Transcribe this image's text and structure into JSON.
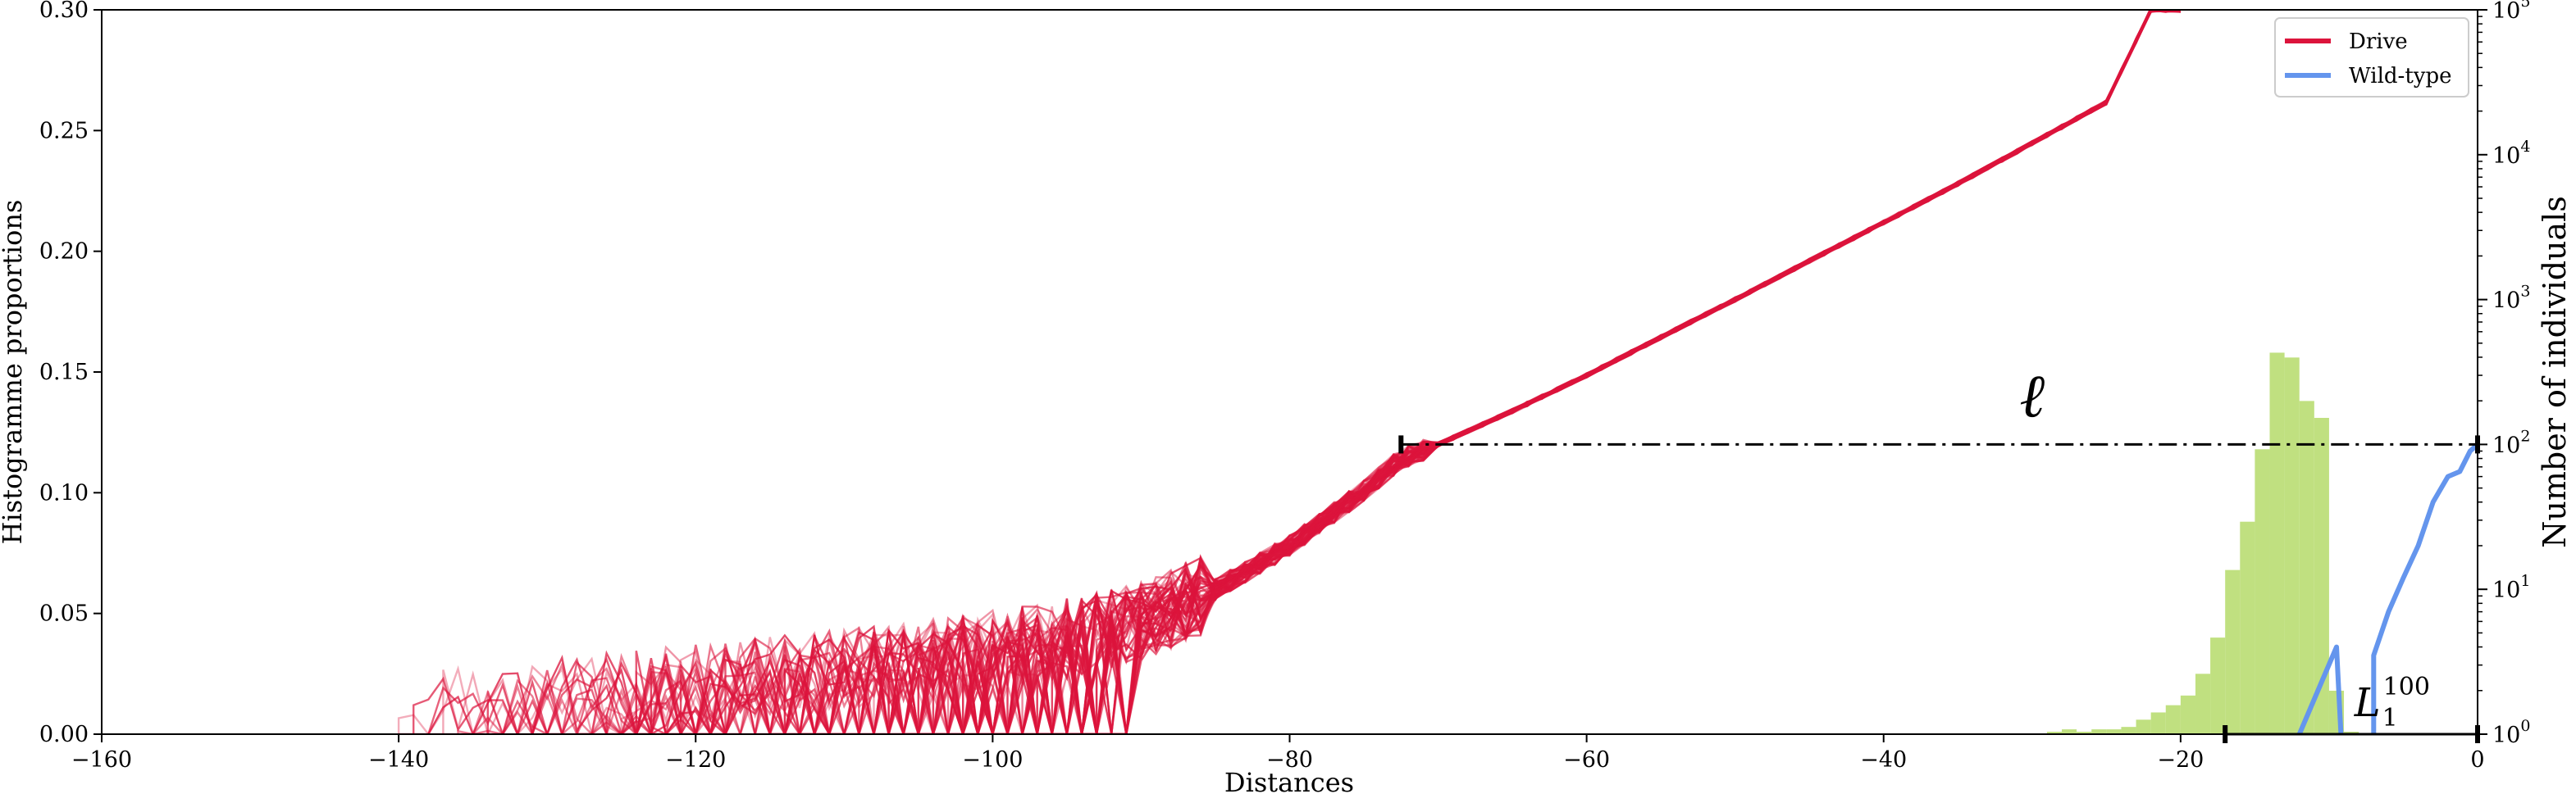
{
  "chart_data": {
    "type": "line",
    "title": "",
    "xlabel": "Distances",
    "ylabel_left": "Histogramme proportions",
    "ylabel_right": "Number of individuals",
    "xlim": [
      -160,
      0
    ],
    "ylim_left": [
      0,
      0.3
    ],
    "ylim_right": [
      1,
      100000
    ],
    "right_axis_scale": "log",
    "grid": false,
    "legend_position": "top-right",
    "x_ticks": [
      "−160",
      "−140",
      "−120",
      "−100",
      "−80",
      "−60",
      "−40",
      "−20",
      "0"
    ],
    "x_tick_values": [
      -160,
      -140,
      -120,
      -100,
      -80,
      -60,
      -40,
      -20,
      0
    ],
    "y_left_ticks": [
      "0.00",
      "0.05",
      "0.10",
      "0.15",
      "0.20",
      "0.25",
      "0.30"
    ],
    "y_left_tick_values": [
      0,
      0.05,
      0.1,
      0.15,
      0.2,
      0.25,
      0.3
    ],
    "y_right_ticks": [
      {
        "base": "10",
        "exp": "0",
        "value": 1
      },
      {
        "base": "10",
        "exp": "1",
        "value": 10
      },
      {
        "base": "10",
        "exp": "2",
        "value": 100
      },
      {
        "base": "10",
        "exp": "3",
        "value": 1000
      },
      {
        "base": "10",
        "exp": "4",
        "value": 10000
      },
      {
        "base": "10",
        "exp": "5",
        "value": 100000
      }
    ],
    "legend": [
      {
        "label": "Drive",
        "color": "#DC143C"
      },
      {
        "label": "Wild-type",
        "color": "#6495ED"
      }
    ],
    "series": [
      {
        "name": "Drive",
        "axis": "right",
        "color": "#DC143C",
        "note_count": 60,
        "x": [
          -140,
          -135,
          -130,
          -125,
          -120,
          -115,
          -110,
          -105,
          -100,
          -95,
          -90,
          -85,
          -80,
          -75,
          -72.5,
          -70,
          -65,
          -60,
          -55,
          -50,
          -45,
          -40,
          -35,
          -30,
          -25,
          -22
        ],
        "y": [
          1.4,
          1.6,
          1.8,
          2.0,
          2.2,
          2.5,
          2.8,
          3.2,
          3.8,
          4.6,
          6.0,
          10,
          20,
          48,
          80,
          100,
          170,
          300,
          550,
          1000,
          1850,
          3400,
          6300,
          12000,
          23000,
          100000
        ]
      },
      {
        "name": "Wild-type",
        "axis": "right",
        "color": "#6495ED",
        "segments": [
          {
            "x": [
              -12,
              -9.5
            ],
            "y": [
              1,
              4
            ]
          },
          {
            "x": [
              -7,
              -6,
              -5,
              -4,
              -3,
              -2,
              -1.2,
              -0.5,
              0
            ],
            "y": [
              3.5,
              7,
              12,
              20,
              40,
              60,
              65,
              90,
              100
            ]
          }
        ]
      }
    ],
    "histogram": {
      "axis": "left",
      "color": "#B5DA6A",
      "bin_width": 1,
      "bins_left_edge": [
        -29,
        -28,
        -27,
        -26,
        -25,
        -24,
        -23,
        -22,
        -21,
        -20,
        -19,
        -18,
        -17,
        -16,
        -15,
        -14,
        -13,
        -12,
        -11,
        -10,
        -9
      ],
      "values": [
        0.001,
        0.002,
        0.001,
        0.002,
        0.002,
        0.003,
        0.006,
        0.009,
        0.012,
        0.016,
        0.025,
        0.04,
        0.068,
        0.088,
        0.118,
        0.158,
        0.156,
        0.138,
        0.131,
        0.018,
        0.001
      ]
    },
    "annotations": [
      {
        "name": "ell-bracket",
        "label": "ℓ",
        "from": -72.5,
        "to": 0,
        "y": 100,
        "axis": "right",
        "style": "dashdot"
      },
      {
        "name": "L1-100-bracket",
        "label": "L",
        "sub": "1",
        "sup": "100",
        "from": -17,
        "to": 0,
        "y": 1,
        "axis": "right",
        "style": "solid"
      }
    ]
  }
}
